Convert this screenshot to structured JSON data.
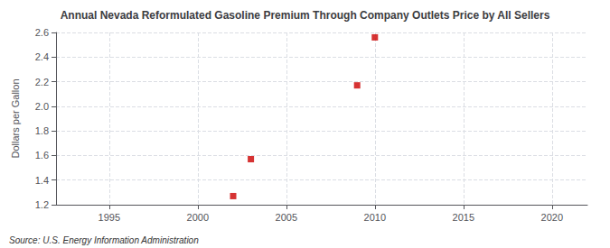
{
  "chart_data": {
    "type": "scatter",
    "title": "Annual Nevada Reformulated Gasoline Premium Through Company Outlets Price by All Sellers",
    "ylabel": "Dollars per Gallon",
    "annotations": [
      "Source: U.S. Energy Information Administration"
    ],
    "x": [
      2002,
      2003,
      2009,
      2010
    ],
    "values": [
      1.27,
      1.57,
      2.17,
      2.56
    ],
    "color": "#cc0000",
    "marker": "square",
    "xlim": [
      1992,
      2022
    ],
    "xticks": [
      1995,
      2000,
      2005,
      2010,
      2015,
      2020
    ],
    "ylim": [
      1.2,
      2.6
    ],
    "yticks": [
      1.2,
      1.4,
      1.6,
      1.8,
      {
        "value": 2.0,
        "label": "2.0"
      },
      2.2,
      2.4,
      2.6
    ],
    "grid": true
  }
}
